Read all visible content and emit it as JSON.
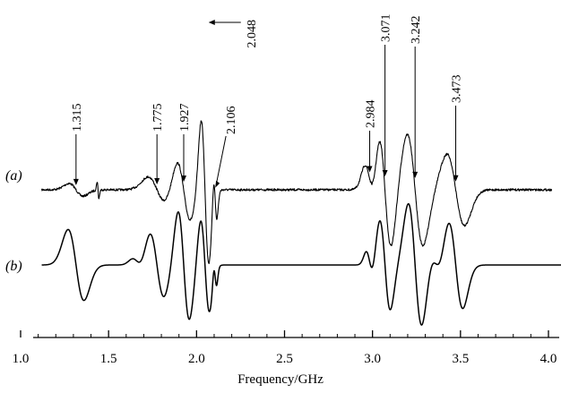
{
  "chart_data": {
    "type": "line",
    "title": "",
    "xlabel": "Frequency/GHz",
    "ylabel": "",
    "xlim": [
      1.0,
      4.1
    ],
    "x_ticks": [
      "1.0",
      "1.5",
      "2.0",
      "2.5",
      "3.0",
      "3.5",
      "4.0"
    ],
    "grid": false,
    "series": [
      {
        "name": "(a)",
        "x_range": [
          1.12,
          4.02
        ],
        "noise": true,
        "peaks": [
          {
            "x": 1.315,
            "amp": 0.22,
            "w": 0.04
          },
          {
            "x": 1.44,
            "amp": 0.3,
            "w": 0.005
          },
          {
            "x": 1.775,
            "amp": 0.45,
            "w": 0.05
          },
          {
            "x": 1.927,
            "amp": 1.05,
            "w": 0.038
          },
          {
            "x": 2.048,
            "amp": 2.55,
            "w": 0.022
          },
          {
            "x": 2.106,
            "amp": 0.9,
            "w": 0.01
          },
          {
            "x": 2.984,
            "amp": 0.8,
            "w": 0.028
          },
          {
            "x": 3.071,
            "amp": 2.05,
            "w": 0.035
          },
          {
            "x": 3.242,
            "amp": 1.95,
            "w": 0.045
          },
          {
            "x": 3.473,
            "amp": 1.25,
            "w": 0.05
          }
        ]
      },
      {
        "name": "(b)",
        "x_range": [
          1.12,
          4.1
        ],
        "noise": false,
        "peaks": [
          {
            "x": 1.315,
            "amp": 1.1,
            "w": 0.045
          },
          {
            "x": 1.665,
            "amp": 0.18,
            "w": 0.03
          },
          {
            "x": 1.775,
            "amp": 1.0,
            "w": 0.04
          },
          {
            "x": 1.927,
            "amp": 1.7,
            "w": 0.032
          },
          {
            "x": 2.048,
            "amp": 1.45,
            "w": 0.025
          },
          {
            "x": 2.106,
            "amp": 0.45,
            "w": 0.009
          },
          {
            "x": 2.984,
            "amp": 0.4,
            "w": 0.02
          },
          {
            "x": 3.071,
            "amp": 1.4,
            "w": 0.03
          },
          {
            "x": 3.242,
            "amp": 1.9,
            "w": 0.038
          },
          {
            "x": 3.36,
            "amp": 0.3,
            "w": 0.03
          },
          {
            "x": 3.473,
            "amp": 1.35,
            "w": 0.04
          }
        ]
      }
    ],
    "annotations": [
      {
        "label": "1.315",
        "x": 1.315
      },
      {
        "label": "1.775",
        "x": 1.775
      },
      {
        "label": "1.927",
        "x": 1.927
      },
      {
        "label": "2.048",
        "x": 2.048
      },
      {
        "label": "2.106",
        "x": 2.106
      },
      {
        "label": "2.984",
        "x": 2.984
      },
      {
        "label": "3.071",
        "x": 3.071
      },
      {
        "label": "3.242",
        "x": 3.242
      },
      {
        "label": "3.473",
        "x": 3.473
      }
    ]
  }
}
